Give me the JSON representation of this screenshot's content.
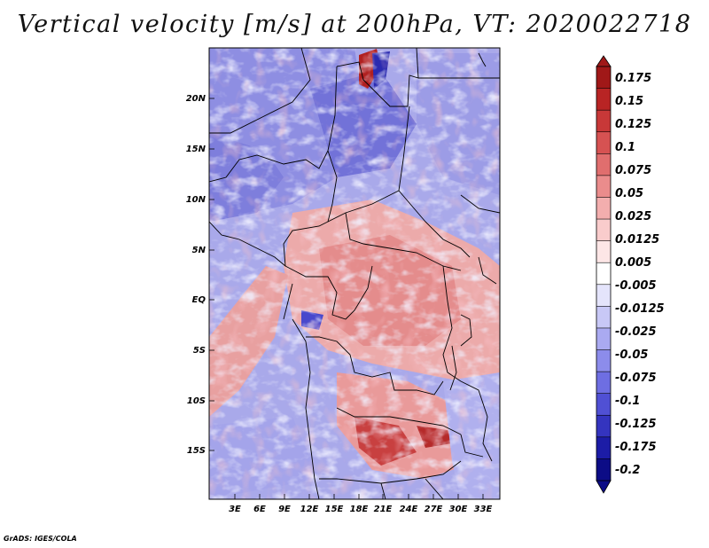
{
  "title": "Vertical velocity [m/s] at 200hPa, VT: 2020022718",
  "credit": "GrADS: IGES/COLA",
  "map": {
    "lat_labels": [
      "20N",
      "15N",
      "10N",
      "5N",
      "EQ",
      "5S",
      "10S",
      "15S"
    ],
    "lon_labels": [
      "3E",
      "6E",
      "9E",
      "12E",
      "15E",
      "18E",
      "21E",
      "24E",
      "27E",
      "30E",
      "33E"
    ]
  },
  "colorbar": {
    "labels": [
      "0.175",
      "0.15",
      "0.125",
      "0.1",
      "0.075",
      "0.05",
      "0.025",
      "0.0125",
      "0.005",
      "-0.005",
      "-0.0125",
      "-0.025",
      "-0.05",
      "-0.075",
      "-0.1",
      "-0.125",
      "-0.175",
      "-0.2"
    ],
    "colors": [
      "#a01818",
      "#b82424",
      "#c83838",
      "#d65252",
      "#e06e6e",
      "#ea8c8c",
      "#f3aeae",
      "#f9cccc",
      "#fde6e6",
      "#ffffff",
      "#e4e4fb",
      "#c8c8f6",
      "#aaaaf1",
      "#8c8ceb",
      "#6e6ee2",
      "#5050d4",
      "#3434bf",
      "#1c1ca6",
      "#0c0c86"
    ]
  }
}
